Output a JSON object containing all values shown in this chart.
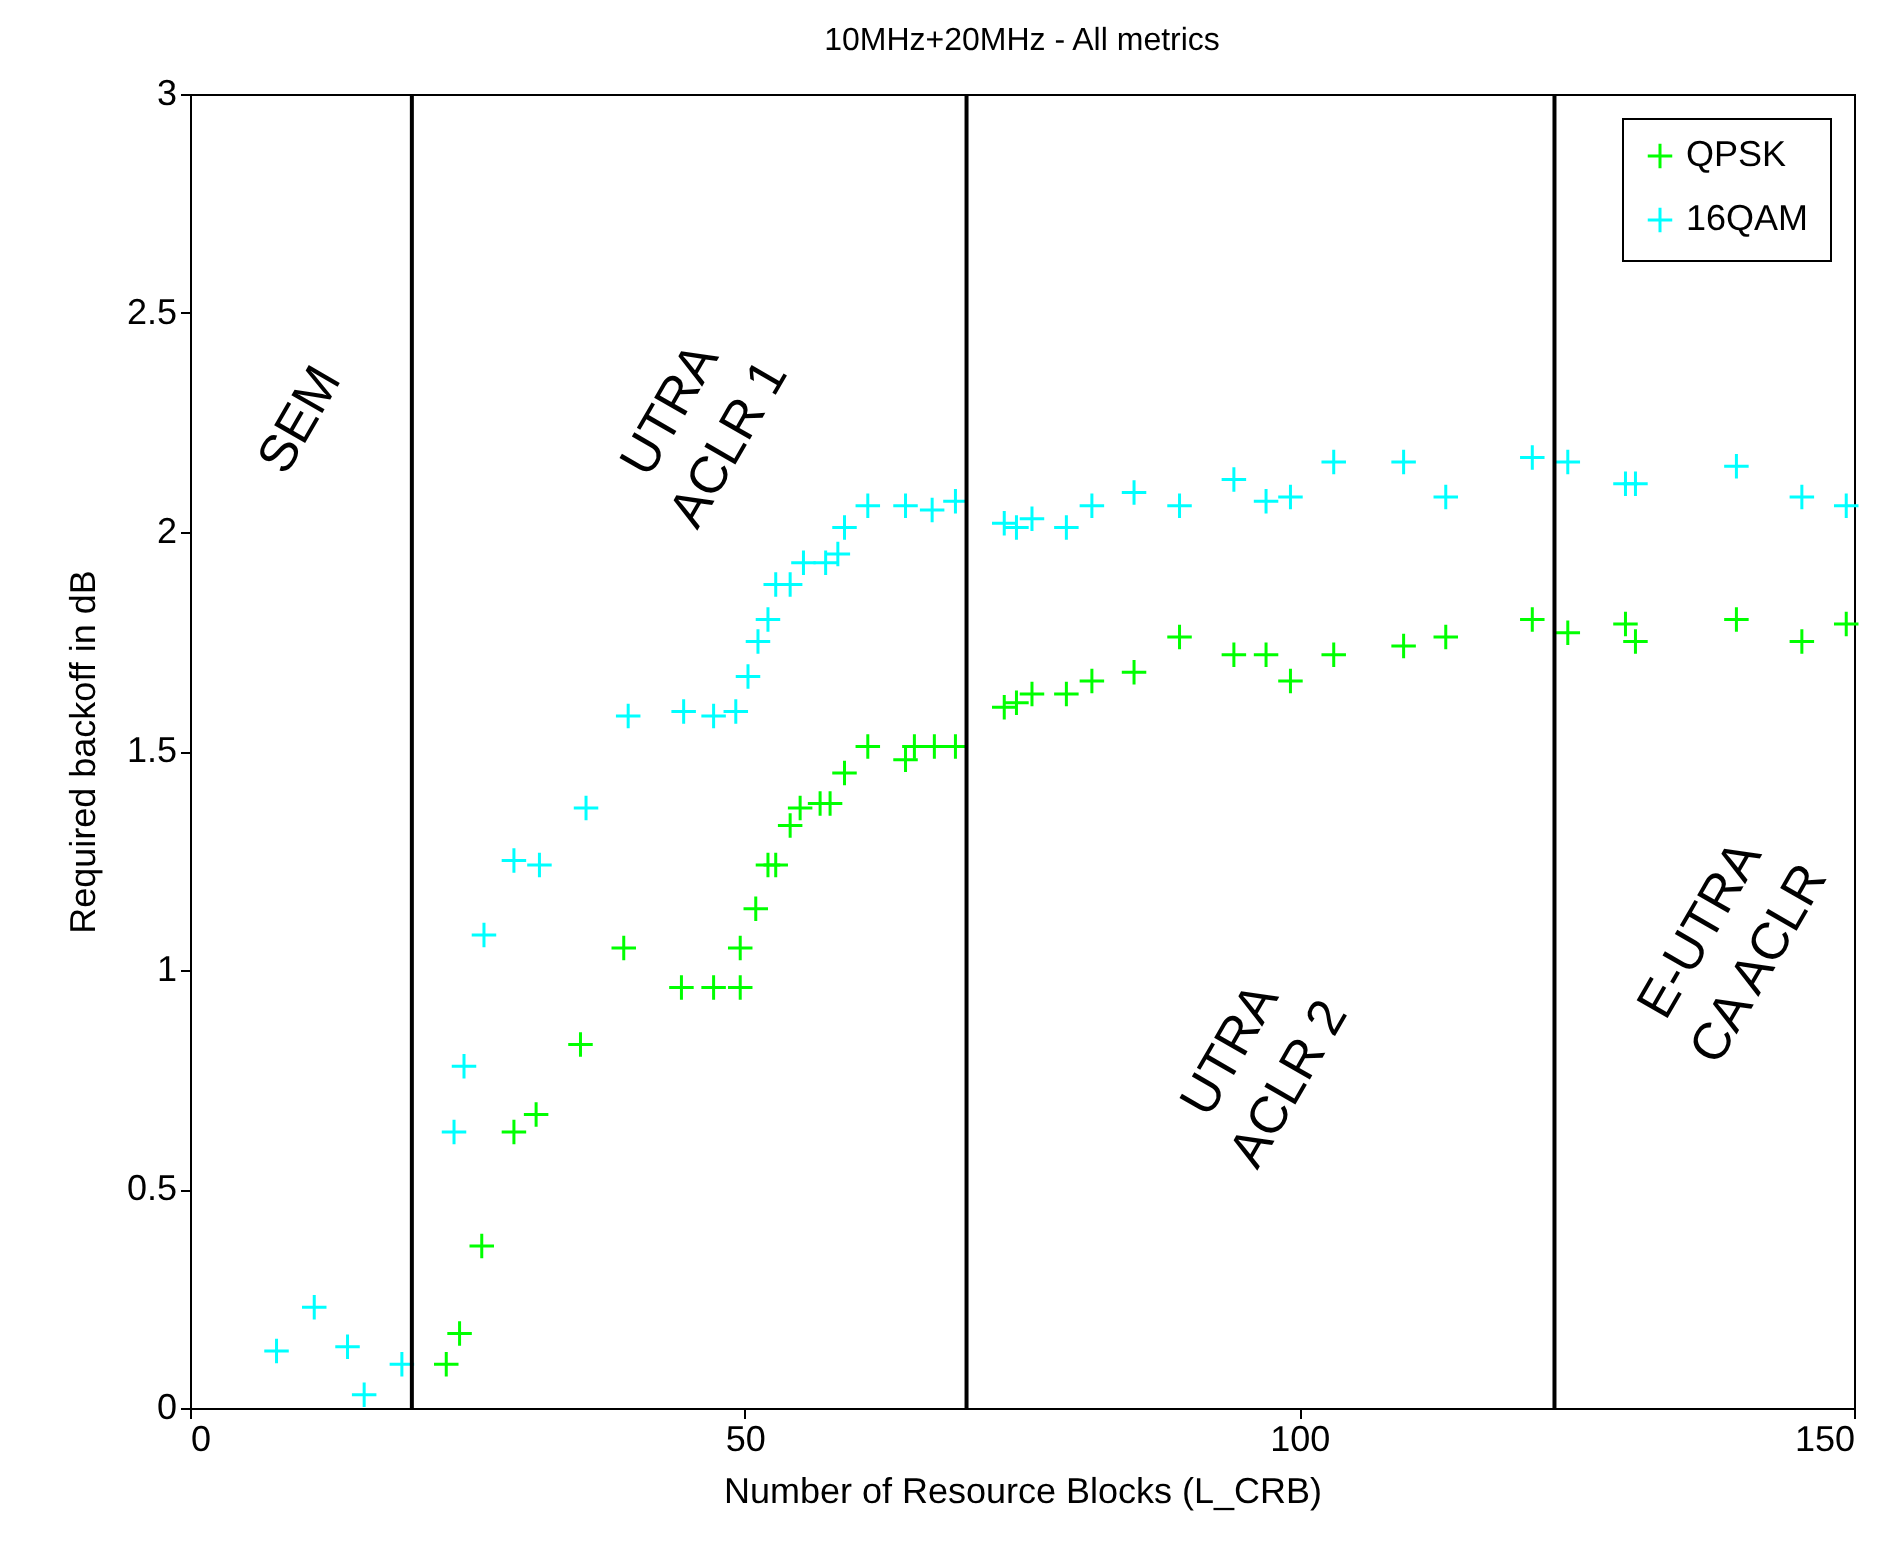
{
  "chart_data": {
    "type": "scatter",
    "title": "10MHz+20MHz - All metrics",
    "xlabel": "Number of Resource Blocks (L_CRB)",
    "ylabel": "Required backoff in dB",
    "xlim": [
      0,
      150
    ],
    "xticks": [
      0,
      50,
      100,
      150
    ],
    "ylim": [
      0,
      3
    ],
    "yticks": [
      0,
      0.5,
      1,
      1.5,
      2,
      2.5,
      3
    ],
    "grid": false,
    "legend": "top right",
    "marker": "cross",
    "series": [
      {
        "name": "QPSK",
        "color": "#00ff00",
        "x": [
          23.1,
          24.3,
          26.3,
          29.2,
          31.2,
          35.2,
          39.1,
          44.3,
          47.2,
          49.6,
          49.6,
          51.0,
          52.1,
          52.8,
          54.1,
          55.0,
          56.8,
          57.7,
          59.0,
          61.1,
          64.5,
          65.3,
          67.1,
          69.0,
          73.4,
          74.5,
          75.9,
          79.0,
          81.3,
          85.1,
          89.2,
          94.1,
          97.0,
          99.2,
          103.1,
          109.4,
          113.2,
          121.0,
          124.2,
          129.4,
          130.3,
          139.4,
          145.3,
          149.3
        ],
        "values": [
          0.1,
          0.17,
          0.37,
          0.63,
          0.67,
          0.83,
          1.05,
          0.96,
          0.96,
          0.96,
          1.05,
          1.14,
          1.24,
          1.24,
          1.33,
          1.37,
          1.38,
          1.38,
          1.45,
          1.51,
          1.48,
          1.51,
          1.51,
          1.51,
          1.6,
          1.61,
          1.63,
          1.63,
          1.66,
          1.68,
          1.76,
          1.72,
          1.72,
          1.66,
          1.72,
          1.74,
          1.76,
          1.8,
          1.77,
          1.79,
          1.75,
          1.8,
          1.75,
          1.79
        ]
      },
      {
        "name": "16QAM",
        "color": "#00ffff",
        "x": [
          7.8,
          11.2,
          14.2,
          15.7,
          19.1,
          23.8,
          24.7,
          26.5,
          29.2,
          31.5,
          35.7,
          39.5,
          44.5,
          47.2,
          49.2,
          50.3,
          51.2,
          52.1,
          52.8,
          54.1,
          55.3,
          57.3,
          58.4,
          59.0,
          61.1,
          64.5,
          66.9,
          69.0,
          73.4,
          74.5,
          75.9,
          79.0,
          81.3,
          85.1,
          89.2,
          94.1,
          97.0,
          99.2,
          103.1,
          109.4,
          113.2,
          121.0,
          124.2,
          129.4,
          130.3,
          139.4,
          145.3,
          149.3
        ],
        "values": [
          0.13,
          0.23,
          0.14,
          0.03,
          0.1,
          0.63,
          0.78,
          1.08,
          1.25,
          1.24,
          1.37,
          1.58,
          1.59,
          1.58,
          1.59,
          1.67,
          1.75,
          1.8,
          1.88,
          1.88,
          1.93,
          1.93,
          1.95,
          2.01,
          2.06,
          2.06,
          2.05,
          2.07,
          2.02,
          2.01,
          2.03,
          2.01,
          2.06,
          2.09,
          2.06,
          2.12,
          2.07,
          2.08,
          2.16,
          2.16,
          2.08,
          2.17,
          2.16,
          2.11,
          2.11,
          2.15,
          2.08,
          2.06
        ]
      }
    ],
    "ref_lines": [
      {
        "axis": "x",
        "value": 20,
        "color": "#000000"
      },
      {
        "axis": "x",
        "value": 70,
        "color": "#000000"
      },
      {
        "axis": "x",
        "value": 123,
        "color": "#000000"
      }
    ],
    "annotations": [
      "SEM",
      "UTRA\nACLR 1",
      "UTRA\nACLR 2",
      "E-UTRA\nCA ACLR"
    ]
  }
}
